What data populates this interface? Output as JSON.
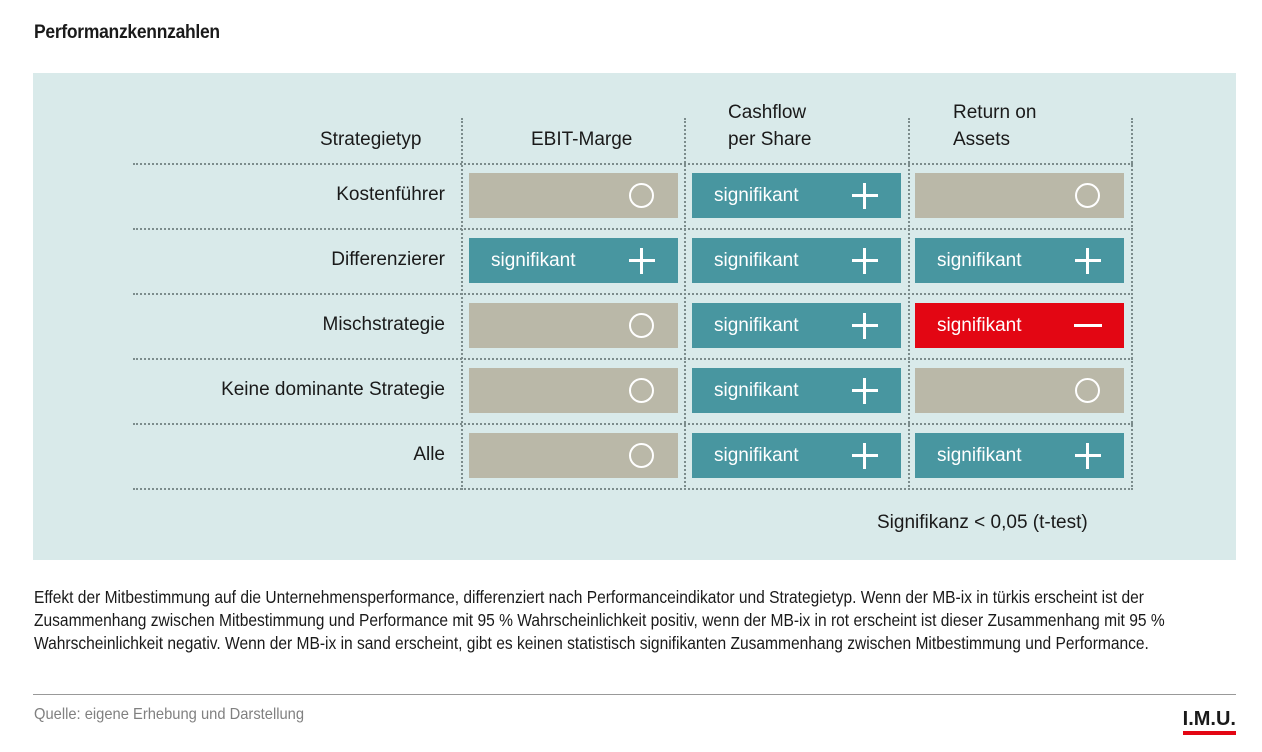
{
  "title": "Performanzkennzahlen",
  "colors": {
    "significant_positive": "#4896a0",
    "significant_negative": "#e30613",
    "not_significant": "#bab8a8",
    "panel_background": "#d9eaea"
  },
  "chart_data": {
    "type": "table",
    "row_header": "Strategietyp",
    "columns": [
      {
        "line1": "",
        "line2": "EBIT-Marge"
      },
      {
        "line1": "Cashflow",
        "line2": "per Share"
      },
      {
        "line1": "Return on",
        "line2": "Assets"
      }
    ],
    "rows": [
      {
        "label": "Kostenführer",
        "cells": [
          {
            "status": "none",
            "text": "",
            "symbol": "circle"
          },
          {
            "status": "positive",
            "text": "signifikant",
            "symbol": "plus"
          },
          {
            "status": "none",
            "text": "",
            "symbol": "circle"
          }
        ]
      },
      {
        "label": "Differenzierer",
        "cells": [
          {
            "status": "positive",
            "text": "signifikant",
            "symbol": "plus"
          },
          {
            "status": "positive",
            "text": "signifikant",
            "symbol": "plus"
          },
          {
            "status": "positive",
            "text": "signifikant",
            "symbol": "plus"
          }
        ]
      },
      {
        "label": "Mischstrategie",
        "cells": [
          {
            "status": "none",
            "text": "",
            "symbol": "circle"
          },
          {
            "status": "positive",
            "text": "signifikant",
            "symbol": "plus"
          },
          {
            "status": "negative",
            "text": "signifikant",
            "symbol": "minus"
          }
        ]
      },
      {
        "label": "Keine dominante Strategie",
        "cells": [
          {
            "status": "none",
            "text": "",
            "symbol": "circle"
          },
          {
            "status": "positive",
            "text": "signifikant",
            "symbol": "plus"
          },
          {
            "status": "none",
            "text": "",
            "symbol": "circle"
          }
        ]
      },
      {
        "label": "Alle",
        "cells": [
          {
            "status": "none",
            "text": "",
            "symbol": "circle"
          },
          {
            "status": "positive",
            "text": "signifikant",
            "symbol": "plus"
          },
          {
            "status": "positive",
            "text": "signifikant",
            "symbol": "plus"
          }
        ]
      }
    ],
    "note": "Signifikanz < 0,05 (t-test)"
  },
  "caption": "Effekt der Mitbestimmung auf die Unternehmensperformance, differenziert nach Performanceindikator und Strategietyp. Wenn der MB-ix in türkis erscheint ist der Zusammenhang zwischen Mitbestimmung und Performance mit 95 % Wahrscheinlichkeit positiv, wenn der MB-ix in rot erscheint ist dieser Zusammenhang mit 95 % Wahrscheinlichkeit negativ. Wenn der MB-ix in sand erscheint, gibt es keinen statistisch signifikanten Zusammenhang zwischen Mitbestimmung und Performance.",
  "source": "Quelle: eigene Erhebung und Darstellung",
  "logo": "I.M.U."
}
